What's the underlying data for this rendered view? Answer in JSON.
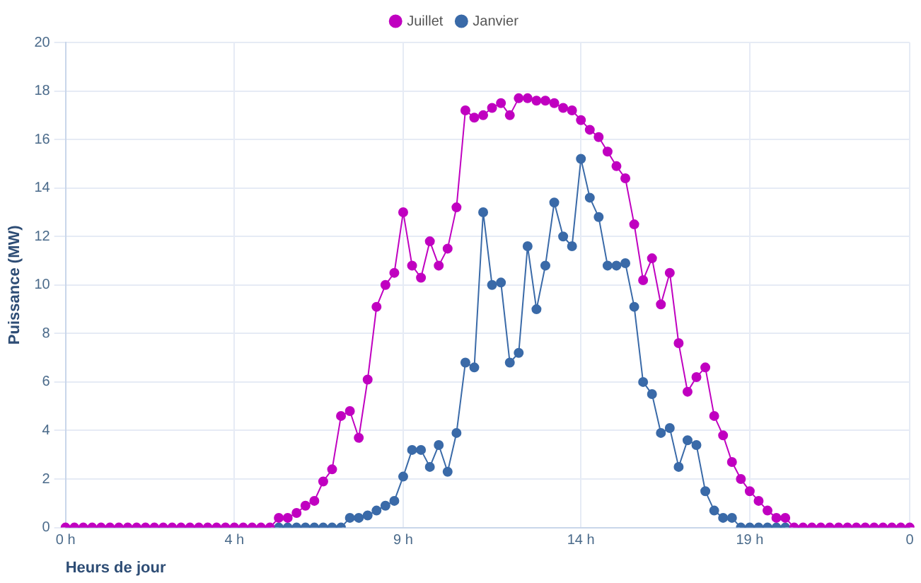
{
  "chart_data": {
    "type": "line",
    "xlabel": "Heurs de jour",
    "ylabel": "Puissance (MW)",
    "categories": [
      "0 h",
      null,
      null,
      null,
      null,
      null,
      null,
      null,
      null,
      null,
      null,
      null,
      null,
      null,
      null,
      null,
      null,
      null,
      null,
      "4 h",
      null,
      null,
      null,
      null,
      null,
      null,
      null,
      null,
      null,
      null,
      null,
      null,
      null,
      null,
      null,
      null,
      null,
      null,
      "9 h",
      null,
      null,
      null,
      null,
      null,
      null,
      null,
      null,
      null,
      null,
      null,
      null,
      null,
      null,
      null,
      null,
      null,
      null,
      null,
      "14 h",
      null,
      null,
      null,
      null,
      null,
      null,
      null,
      null,
      null,
      null,
      null,
      null,
      null,
      null,
      null,
      null,
      null,
      null,
      "19 h",
      null,
      null,
      null,
      null,
      null,
      null,
      null,
      null,
      null,
      null,
      null,
      null,
      null,
      null,
      null,
      null,
      null,
      "0"
    ],
    "series": [
      {
        "name": "Juillet",
        "color": "#c000c0",
        "values": [
          0,
          0,
          0,
          0,
          0,
          0,
          0,
          0,
          0,
          0,
          0,
          0,
          0,
          0,
          0,
          0,
          0,
          0,
          0,
          0,
          0,
          0,
          0,
          0,
          0.4,
          0.4,
          0.6,
          0.9,
          1.1,
          1.9,
          2.4,
          4.6,
          4.8,
          3.7,
          6.1,
          9.1,
          10,
          10.5,
          13,
          10.8,
          10.3,
          11.8,
          10.8,
          11.5,
          13.2,
          17.2,
          16.9,
          17,
          17.3,
          17.5,
          17,
          17.7,
          17.7,
          17.6,
          17.6,
          17.5,
          17.3,
          17.2,
          16.8,
          16.4,
          16.1,
          15.5,
          14.9,
          14.4,
          12.5,
          10.2,
          11.1,
          9.2,
          10.5,
          7.6,
          5.6,
          6.2,
          6.6,
          4.6,
          3.8,
          2.7,
          2,
          1.5,
          1.1,
          0.7,
          0.4,
          0.4,
          0,
          0,
          0,
          0,
          0,
          0,
          0,
          0,
          0,
          0,
          0,
          0,
          0,
          0
        ]
      },
      {
        "name": "Janvier",
        "color": "#3a6aa8",
        "values": [
          null,
          null,
          null,
          null,
          null,
          null,
          null,
          null,
          null,
          null,
          null,
          null,
          null,
          null,
          null,
          null,
          null,
          null,
          null,
          null,
          null,
          null,
          null,
          null,
          0,
          0,
          0,
          0,
          0,
          0,
          0,
          0,
          0.4,
          0.4,
          0.5,
          0.7,
          0.9,
          1.1,
          2.1,
          3.2,
          3.2,
          2.5,
          3.4,
          2.3,
          3.9,
          6.8,
          6.6,
          13,
          10,
          10.1,
          6.8,
          7.2,
          11.6,
          9,
          10.8,
          13.4,
          12,
          11.6,
          15.2,
          13.6,
          12.8,
          10.8,
          10.8,
          10.9,
          9.1,
          6,
          5.5,
          3.9,
          4.1,
          2.5,
          3.6,
          3.4,
          1.5,
          0.7,
          0.4,
          0.4,
          0,
          0,
          0,
          0,
          0,
          0,
          null,
          null,
          null,
          null,
          null,
          null,
          null,
          null,
          null,
          null,
          null,
          null,
          null,
          null
        ]
      }
    ],
    "ylim": [
      0,
      20
    ],
    "yticks": [
      0,
      2,
      4,
      6,
      8,
      10,
      12,
      14,
      16,
      18,
      20
    ],
    "grid": true,
    "legend": "top",
    "marker": "circle",
    "line_style": "solid"
  }
}
